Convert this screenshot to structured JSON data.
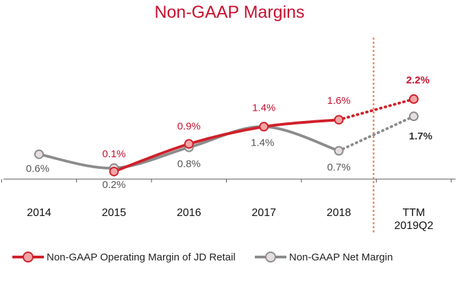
{
  "chart_data": {
    "type": "line",
    "title": "Non-GAAP Margins",
    "categories": [
      "2014",
      "2015",
      "2016",
      "2017",
      "2018",
      "TTM\n2019Q2"
    ],
    "series": [
      {
        "name": "Non-GAAP Operating Margin of JD Retail",
        "color": "#d0202a",
        "values": [
          null,
          0.1,
          0.9,
          1.4,
          1.6,
          2.2
        ],
        "labels": [
          "",
          "0.1%",
          "0.9%",
          "1.4%",
          "1.6%",
          "2.2%"
        ],
        "projected_from_index": 4
      },
      {
        "name": "Non-GAAP Net Margin",
        "color": "#8c8c8c",
        "values": [
          0.6,
          0.2,
          0.8,
          1.4,
          0.7,
          1.7
        ],
        "labels": [
          "0.6%",
          "0.2%",
          "0.8%",
          "1.4%",
          "0.7%",
          "1.7%"
        ],
        "projected_from_index": 4
      }
    ],
    "divider_before_index": 5,
    "legend_position": "bottom",
    "grid": false
  }
}
